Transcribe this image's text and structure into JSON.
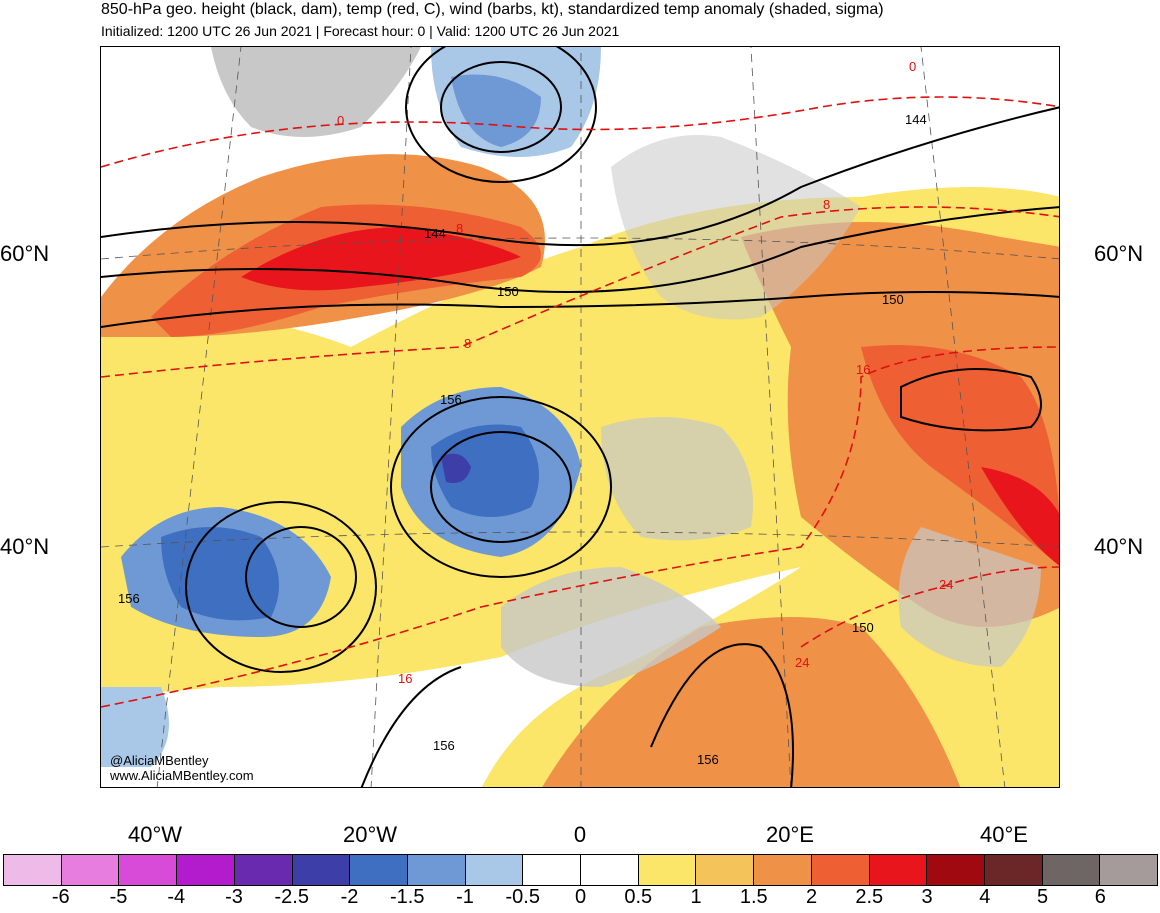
{
  "header": {
    "title": "850-hPa geo. height (black, dam), temp (red, C), wind (barbs, kt), standardized temp anomaly (shaded, sigma)",
    "subtitle": "Initialized: 1200 UTC 26 Jun 2021 | Forecast hour: 0 | Valid: 1200 UTC 26 Jun 2021"
  },
  "map": {
    "lat_labels": [
      "60°N",
      "40°N"
    ],
    "lon_labels": [
      "40°W",
      "20°W",
      "0",
      "20°E",
      "40°E"
    ],
    "height_contour_labels": [
      "144",
      "150",
      "156",
      "144",
      "150",
      "156",
      "156",
      "150",
      "156"
    ],
    "temp_contour_labels": [
      "0",
      "8",
      "8",
      "16",
      "8",
      "0",
      "16",
      "24",
      "24"
    ],
    "credit_handle": "@AliciaMBentley",
    "credit_url": "www.AliciaMBentley.com"
  },
  "colorbar": {
    "labels": [
      "-6",
      "-5",
      "-4",
      "-3",
      "-2.5",
      "-2",
      "-1.5",
      "-1",
      "-0.5",
      "0",
      "0.5",
      "1",
      "1.5",
      "2",
      "2.5",
      "3",
      "4",
      "5",
      "6"
    ],
    "colors": [
      "#eebbe8",
      "#e87de0",
      "#d84ad8",
      "#b21ccc",
      "#6a2ab0",
      "#3e3ea8",
      "#3f6fc0",
      "#6f99d4",
      "#a9c8e8",
      "#ffffff",
      "#ffffff",
      "#fbe66a",
      "#f4c35a",
      "#f09148",
      "#ee6034",
      "#e8161c",
      "#a0090f",
      "#6b2727",
      "#6e6565",
      "#a59b9b"
    ]
  }
}
